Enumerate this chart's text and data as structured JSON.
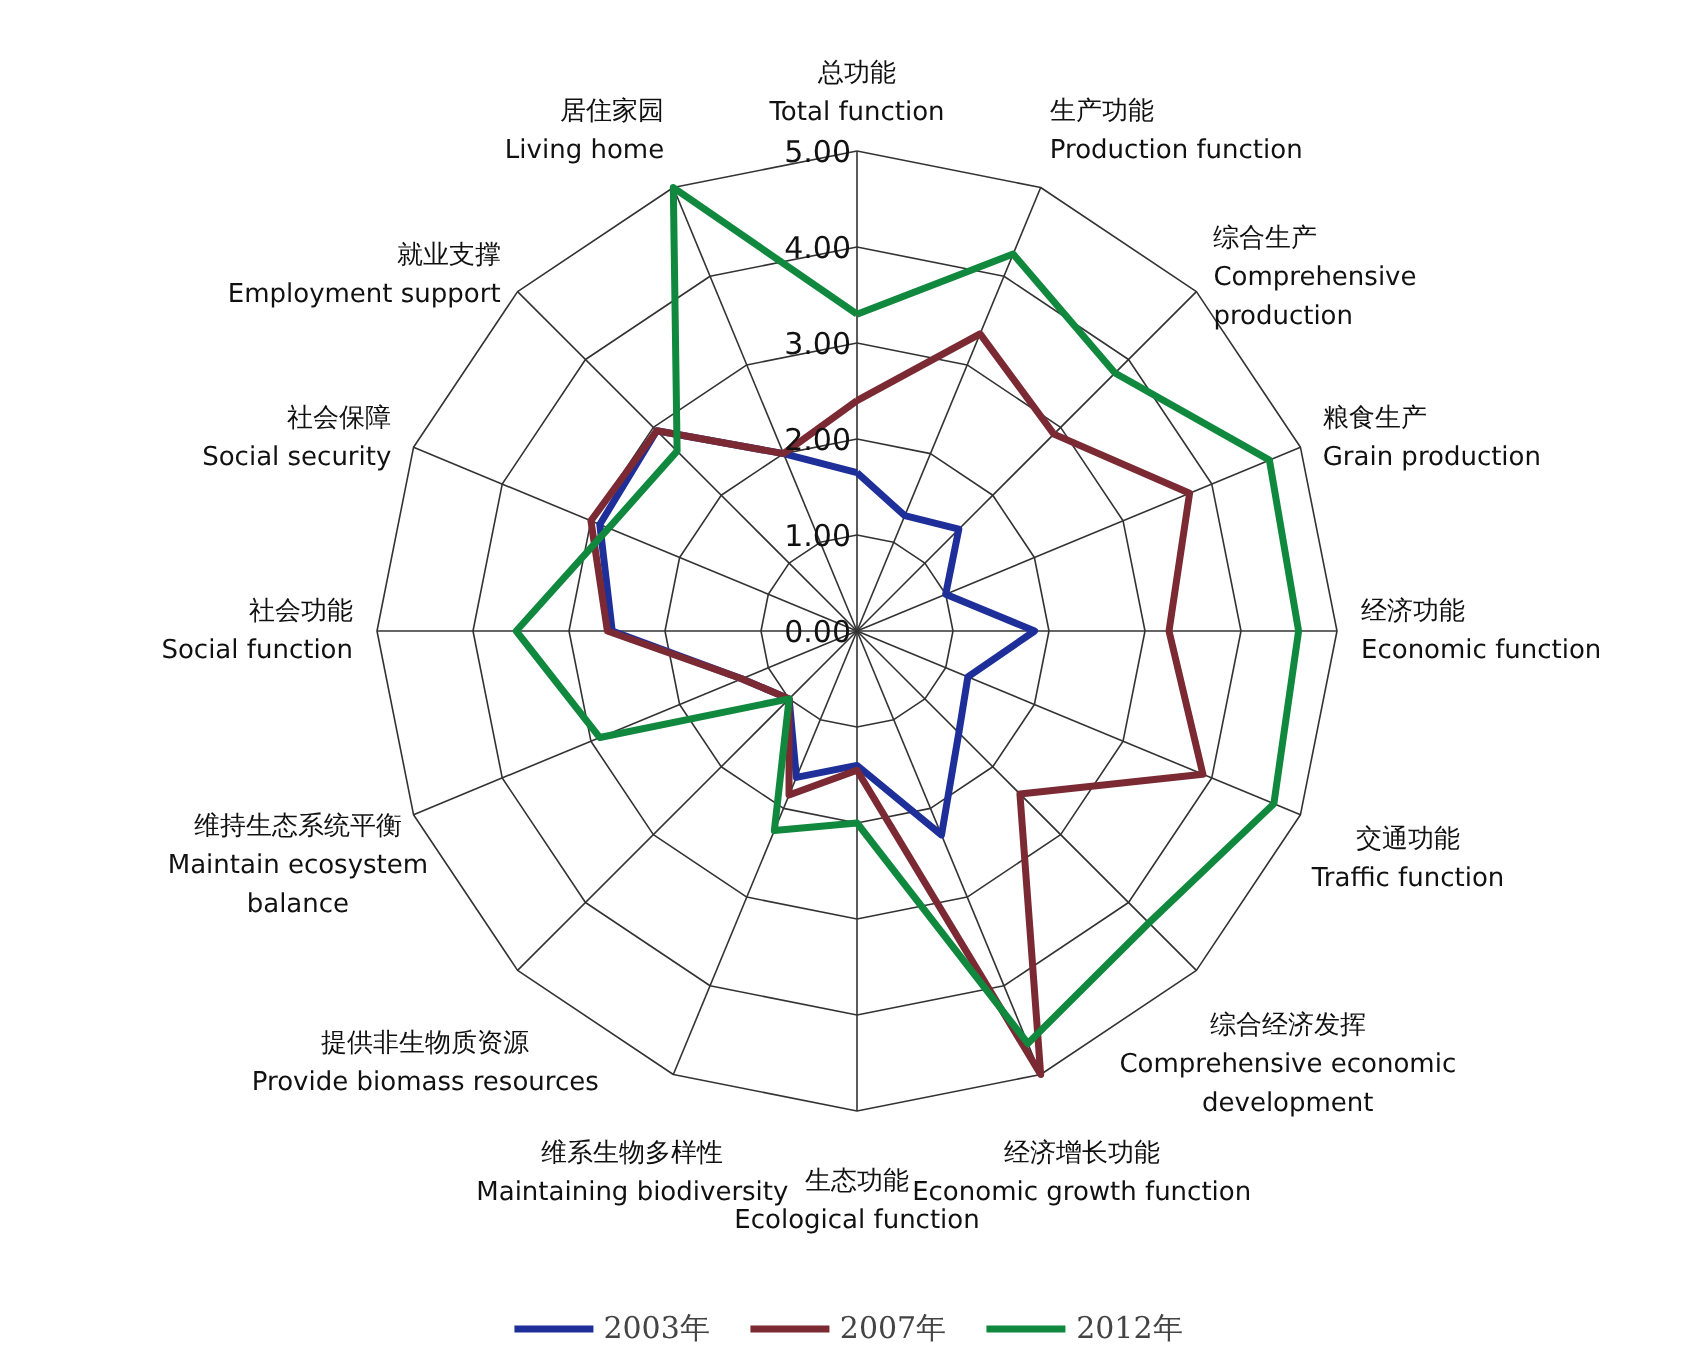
{
  "chart_data": {
    "type": "radar",
    "categories": [
      "总功能\nTotal function",
      "生产功能\nProduction function",
      "综合生产\nComprehensive\nproduction",
      "粮食生产\nGrain production",
      "经济功能\nEconomic function",
      "交通功能\nTraffic function",
      "综合经济发挥\nComprehensive economic\ndevelopment",
      "经济增长功能\nEconomic growth function",
      "生态功能\nEcological function",
      "维系生物多样性\nMaintaining biodiversity",
      "提供非生物质资源\nProvide biomass resources",
      "维持生态系统平衡\nMaintain ecosystem\nbalance",
      "社会功能\nSocial function",
      "社会保障\nSocial security",
      "就业支撑\nEmployment support",
      "居住家园\nLiving home"
    ],
    "series": [
      {
        "name": "2003年",
        "color": "#1f2f9a",
        "values": [
          1.65,
          1.3,
          1.5,
          1.0,
          1.85,
          1.25,
          1.5,
          2.3,
          1.4,
          1.65,
          1.0,
          1.3,
          2.55,
          2.9,
          2.95,
          2.0
        ]
      },
      {
        "name": "2007年",
        "color": "#7b2a33",
        "values": [
          2.4,
          3.35,
          2.9,
          3.75,
          3.25,
          3.9,
          2.4,
          5.0,
          1.45,
          1.85,
          1.0,
          1.3,
          2.6,
          3.0,
          2.95,
          2.0
        ]
      },
      {
        "name": "2012年",
        "color": "#10893e",
        "values": [
          3.3,
          4.25,
          3.8,
          4.65,
          4.6,
          4.7,
          4.3,
          4.65,
          2.0,
          2.25,
          1.0,
          2.9,
          3.55,
          2.8,
          2.65,
          5.0
        ]
      }
    ],
    "ylim": [
      0,
      5
    ],
    "yticks": [
      {
        "value": 0,
        "label": "0.00"
      },
      {
        "value": 1,
        "label": "1.00"
      },
      {
        "value": 2,
        "label": "2.00"
      },
      {
        "value": 3,
        "label": "3.00"
      },
      {
        "value": 4,
        "label": "4.00"
      },
      {
        "value": 5,
        "label": "5.00"
      }
    ],
    "legend": "bottom"
  }
}
